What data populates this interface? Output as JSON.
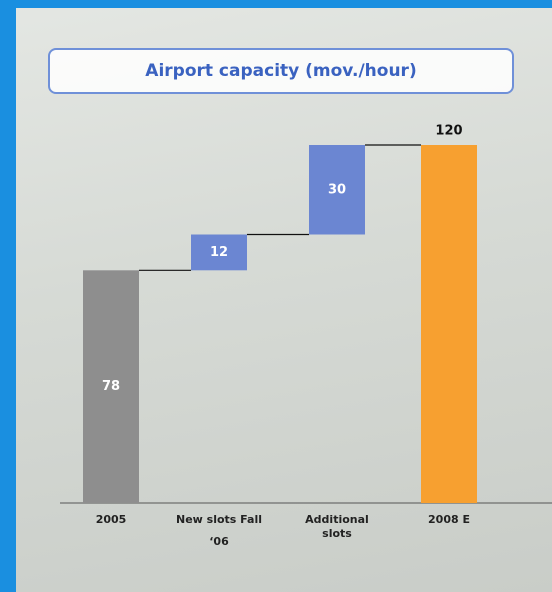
{
  "chart_data": {
    "type": "waterfall",
    "title": "Airport capacity (mov./hour)",
    "categories": [
      "2005",
      "New slots Fall ‘06",
      "Additional slots",
      "2008 E"
    ],
    "values": [
      78,
      12,
      30,
      120
    ],
    "totals": [
      true,
      false,
      false,
      true
    ],
    "colors": [
      "#8e8e8e",
      "#6b86d2",
      "#6b86d2",
      "#f7a030"
    ],
    "ylim": [
      0,
      120
    ]
  }
}
